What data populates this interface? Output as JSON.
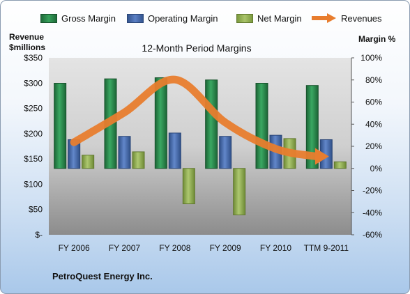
{
  "legend": {
    "gross": "Gross Margin",
    "operating": "Operating Margin",
    "net": "Net Margin",
    "revenues": "Revenues"
  },
  "left_axis_title": [
    "Revenue",
    "$millions"
  ],
  "right_axis_title": "Margin %",
  "company": "PetroQuest Energy Inc.",
  "colors": {
    "gross": "#2e8b4e",
    "operating": "#4f73b5",
    "net": "#9bb858",
    "revenues": "#e87d2e",
    "plot_top": "#dcdcdc",
    "plot_bottom": "#8a8a8a"
  },
  "chart_data": {
    "type": "bar",
    "title": "12-Month Period Margins",
    "categories": [
      "FY 2006",
      "FY 2007",
      "FY 2008",
      "FY 2009",
      "FY 2010",
      "TTM 9-2011"
    ],
    "series": [
      {
        "name": "Gross Margin",
        "axis": "right",
        "values": [
          77,
          81,
          82,
          80,
          77,
          75
        ]
      },
      {
        "name": "Operating Margin",
        "axis": "right",
        "values": [
          26,
          29,
          32,
          29,
          30,
          26
        ]
      },
      {
        "name": "Net Margin",
        "axis": "right",
        "values": [
          12,
          15,
          -32,
          -42,
          27,
          6
        ]
      },
      {
        "name": "Revenues",
        "type": "line",
        "axis": "left",
        "values": [
          183,
          242,
          307,
          222,
          170,
          155
        ]
      }
    ],
    "y_left": {
      "min": 0,
      "max": 350,
      "ticks": [
        "$-",
        "$50",
        "$100",
        "$150",
        "$200",
        "$250",
        "$300",
        "$350"
      ]
    },
    "y_right": {
      "min": -60,
      "max": 100,
      "ticks": [
        "-60%",
        "-40%",
        "-20%",
        "0%",
        "20%",
        "40%",
        "60%",
        "80%",
        "100%"
      ]
    },
    "legend_position": "top",
    "grid": false
  }
}
